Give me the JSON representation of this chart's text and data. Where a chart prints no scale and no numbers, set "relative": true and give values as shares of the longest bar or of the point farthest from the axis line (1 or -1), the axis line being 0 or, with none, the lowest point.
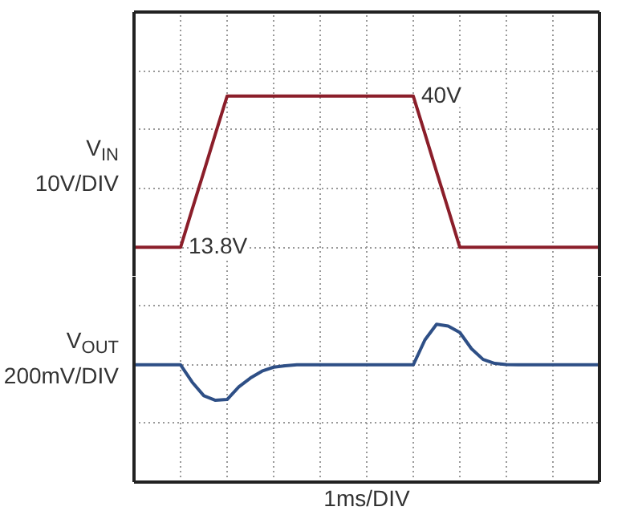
{
  "chart_data": [
    {
      "type": "line",
      "ylabel": "V$_{IN}$\n10V/DIV",
      "categories": [
        null,
        null,
        null,
        null,
        null,
        null,
        null,
        null,
        null,
        null,
        null,
        null,
        null,
        null,
        null,
        null,
        null,
        null,
        null,
        null,
        null,
        null,
        null,
        null,
        null,
        null,
        null,
        null,
        null,
        null,
        null,
        null,
        null,
        null,
        null,
        null,
        null,
        null,
        null,
        null,
        null
      ],
      "grid": true,
      "line_style": "solid",
      "series": [
        {
          "color": "#8b1e2a",
          "values": [
            13.8,
            13.8,
            13.8,
            13.8,
            13.8,
            20.4,
            26.9,
            33.5,
            40,
            40,
            40,
            40,
            40,
            40,
            40,
            40,
            40,
            40,
            40,
            40,
            40,
            40,
            40,
            40,
            40,
            33.5,
            26.9,
            20.4,
            13.8,
            13.8,
            13.8,
            13.8,
            13.8,
            13.8,
            13.8,
            13.8,
            13.8,
            13.8,
            13.8,
            13.8,
            13.8
          ],
          "value_labels": [
            null,
            null,
            null,
            null,
            "13.8V",
            null,
            null,
            null,
            null,
            null,
            null,
            null,
            null,
            null,
            null,
            null,
            null,
            null,
            null,
            null,
            null,
            null,
            null,
            null,
            "40V",
            null,
            null,
            null,
            null,
            null,
            null,
            null,
            null,
            null,
            null,
            null,
            null,
            null,
            null,
            null,
            null
          ]
        }
      ]
    },
    {
      "type": "line",
      "relative": true,
      "xlabel": "1ms/DIV",
      "ylabel": "V$_{OUT}$\n200mV/DIV",
      "categories": [
        null,
        null,
        null,
        null,
        null,
        null,
        null,
        null,
        null,
        null,
        null,
        null,
        null,
        null,
        null,
        null,
        null,
        null,
        null,
        null,
        null,
        null,
        null,
        null,
        null,
        null,
        null,
        null,
        null,
        null,
        null,
        null,
        null,
        null,
        null,
        null,
        null,
        null,
        null,
        null,
        null
      ],
      "grid": true,
      "line_style": "solid",
      "series": [
        {
          "color": "#2e4f86",
          "values": [
            0.743,
            0.743,
            0.743,
            0.743,
            0.743,
            0.633,
            0.547,
            0.518,
            0.523,
            0.603,
            0.659,
            0.703,
            0.728,
            0.737,
            0.743,
            0.743,
            0.743,
            0.743,
            0.743,
            0.743,
            0.743,
            0.743,
            0.743,
            0.743,
            0.743,
            0.901,
            1,
            0.989,
            0.948,
            0.845,
            0.777,
            0.752,
            0.745,
            0.743,
            0.743,
            0.743,
            0.743,
            0.743,
            0.743,
            0.743,
            0.743
          ]
        }
      ]
    }
  ]
}
